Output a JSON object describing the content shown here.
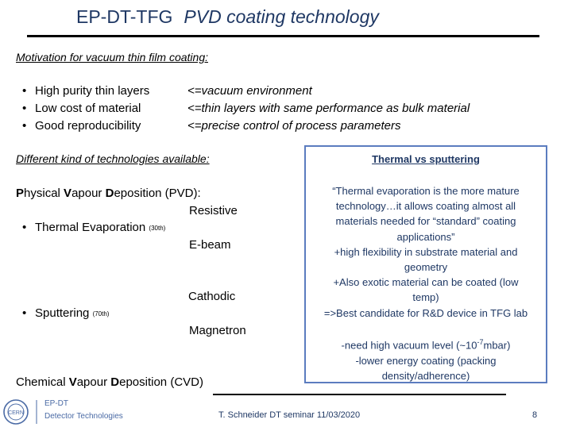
{
  "title": {
    "main": "EP-DT-TFG",
    "sub": "PVD coating technology"
  },
  "motivation": {
    "heading": "Motivation for vacuum thin film coating:",
    "bullets": [
      {
        "text": "High purity thin layers",
        "reason": "<=vacuum environment"
      },
      {
        "text": "Low cost of material",
        "reason": "<=thin layers with same performance as bulk material"
      },
      {
        "text": "Good reproducibility",
        "reason": "<=precise control of process parameters"
      }
    ]
  },
  "technologies": {
    "heading": "Different kind of technologies available:",
    "pvd": {
      "bold1": "P",
      "t1": "hysical ",
      "bold2": "V",
      "t2": "apour ",
      "bold3": "D",
      "t3": "eposition (PVD):"
    },
    "thermal": {
      "label": "Thermal Evaporation",
      "era": "(30th)",
      "methods": [
        "Resistive",
        "E-beam"
      ]
    },
    "sputtering": {
      "label": "Sputtering",
      "era": "(70th)",
      "methods": [
        "Cathodic",
        "Magnetron"
      ]
    },
    "cvd": {
      "bold1": "C",
      "t1": "hemical ",
      "bold2": "V",
      "t2": "apour ",
      "bold3": "D",
      "t3": "eposition (CVD)"
    }
  },
  "comparison_box": {
    "title": "Thermal vs sputtering",
    "quote_lines": [
      "“Thermal evaporation is the more mature",
      "technology…it allows coating almost all",
      "materials needed for “standard” coating",
      "applications”",
      "+high flexibility in substrate material and",
      "geometry",
      "+Also exotic material can be coated (low",
      "temp)",
      "=>Best candidate for R&D device in TFG lab"
    ],
    "cons": {
      "line1_prefix": "-need high vacuum level (~10",
      "line1_exp": "-7",
      "line1_suffix": "mbar)",
      "line2": "-lower energy coating (packing",
      "line3": "density/adherence)"
    }
  },
  "footer": {
    "logo_line1": "EP-DT",
    "logo_line2": "Detector Technologies",
    "logo_mark": "CERN",
    "credit": "T. Schneider DT seminar 11/03/2020",
    "page": "8"
  },
  "colors": {
    "title": "#1f3864",
    "box_border": "#5b7cbf",
    "logo": "#4a6aa5"
  }
}
